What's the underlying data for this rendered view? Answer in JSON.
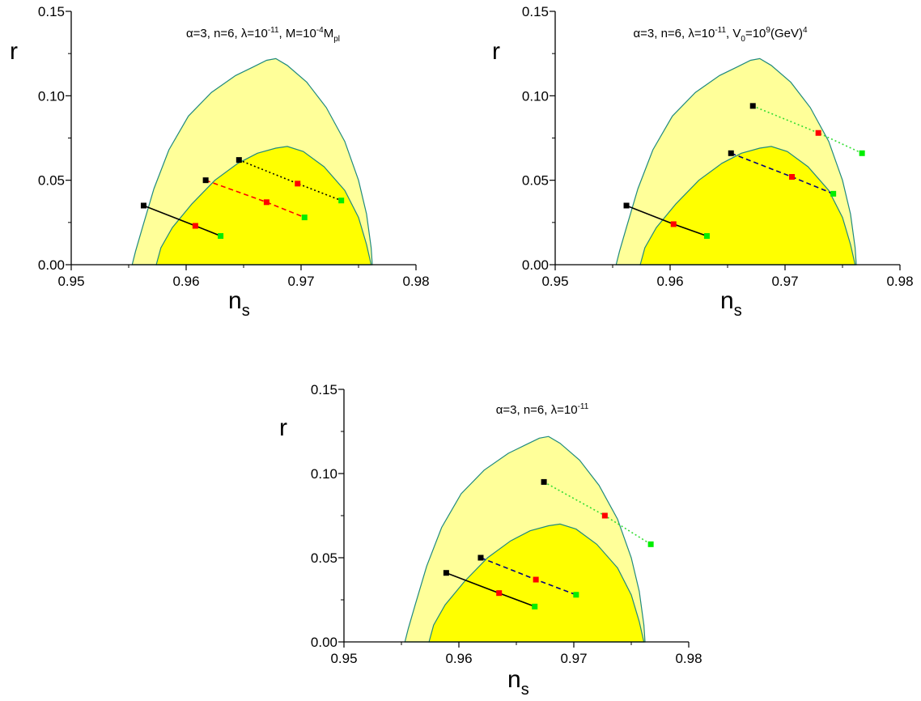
{
  "contour": {
    "outer_color": "#ffff99",
    "inner_color": "#ffff00",
    "edge_color": "#1f8a7e",
    "outer": [
      [
        0.9553,
        0.0
      ],
      [
        0.9556,
        0.008
      ],
      [
        0.9562,
        0.022
      ],
      [
        0.9572,
        0.045
      ],
      [
        0.9585,
        0.068
      ],
      [
        0.9602,
        0.088
      ],
      [
        0.9622,
        0.102
      ],
      [
        0.9643,
        0.112
      ],
      [
        0.9658,
        0.117
      ],
      [
        0.967,
        0.121
      ],
      [
        0.9678,
        0.122
      ],
      [
        0.9688,
        0.118
      ],
      [
        0.9705,
        0.108
      ],
      [
        0.9722,
        0.093
      ],
      [
        0.9738,
        0.073
      ],
      [
        0.975,
        0.05
      ],
      [
        0.9757,
        0.03
      ],
      [
        0.9761,
        0.01
      ],
      [
        0.9762,
        0.0
      ]
    ],
    "inner": [
      [
        0.9574,
        0.0
      ],
      [
        0.9578,
        0.01
      ],
      [
        0.9588,
        0.022
      ],
      [
        0.9605,
        0.036
      ],
      [
        0.9625,
        0.05
      ],
      [
        0.9645,
        0.06
      ],
      [
        0.9662,
        0.066
      ],
      [
        0.9678,
        0.069
      ],
      [
        0.9688,
        0.07
      ],
      [
        0.9702,
        0.067
      ],
      [
        0.972,
        0.058
      ],
      [
        0.9738,
        0.044
      ],
      [
        0.975,
        0.028
      ],
      [
        0.9757,
        0.012
      ],
      [
        0.9761,
        0.0
      ]
    ]
  },
  "chart_data": [
    {
      "type": "line",
      "title": "α=3, n=6, λ=10⁻¹¹, M=10⁻⁴M_pl",
      "xlabel": "n_s",
      "ylabel": "r",
      "xlim": [
        0.95,
        0.98
      ],
      "ylim": [
        0.0,
        0.15
      ],
      "x_ticks": [
        "0.95",
        "0.96",
        "0.97",
        "0.98"
      ],
      "y_ticks": [
        "0.00",
        "0.05",
        "0.10",
        "0.15"
      ],
      "grid": false,
      "series": [
        {
          "style": "solid",
          "color": "#000000",
          "x": [
            0.9563,
            0.9608,
            0.963
          ],
          "y": [
            0.035,
            0.023,
            0.017
          ]
        },
        {
          "style": "dashed",
          "color": "#ff0000",
          "x": [
            0.9617,
            0.967,
            0.9703
          ],
          "y": [
            0.05,
            0.037,
            0.028
          ]
        },
        {
          "style": "dotted",
          "color": "#000000",
          "x": [
            0.9646,
            0.9697,
            0.9735
          ],
          "y": [
            0.062,
            0.048,
            0.038
          ]
        }
      ]
    },
    {
      "type": "line",
      "title": "α=3, n=6, λ=10⁻¹¹, V₀=10⁹(GeV)⁴",
      "xlabel": "n_s",
      "ylabel": "r",
      "xlim": [
        0.95,
        0.98
      ],
      "ylim": [
        0.0,
        0.15
      ],
      "x_ticks": [
        "0.95",
        "0.96",
        "0.97",
        "0.98"
      ],
      "y_ticks": [
        "0.00",
        "0.05",
        "0.10",
        "0.15"
      ],
      "grid": false,
      "series": [
        {
          "style": "solid",
          "color": "#000000",
          "x": [
            0.9562,
            0.9603,
            0.9632
          ],
          "y": [
            0.035,
            0.024,
            0.017
          ]
        },
        {
          "style": "dashed",
          "color": "#000080",
          "x": [
            0.9653,
            0.9706,
            0.9742
          ],
          "y": [
            0.066,
            0.052,
            0.042
          ]
        },
        {
          "style": "dotted",
          "color": "#33dd33",
          "x": [
            0.9672,
            0.9729,
            0.9767
          ],
          "y": [
            0.094,
            0.078,
            0.066
          ]
        }
      ]
    },
    {
      "type": "line",
      "title": "α=3, n=6, λ=10⁻¹¹",
      "xlabel": "n_s",
      "ylabel": "r",
      "xlim": [
        0.95,
        0.98
      ],
      "ylim": [
        0.0,
        0.15
      ],
      "x_ticks": [
        "0.95",
        "0.96",
        "0.97",
        "0.98"
      ],
      "y_ticks": [
        "0.00",
        "0.05",
        "0.10",
        "0.15"
      ],
      "grid": false,
      "series": [
        {
          "style": "solid",
          "color": "#000000",
          "x": [
            0.9589,
            0.9635,
            0.9666
          ],
          "y": [
            0.041,
            0.029,
            0.021
          ]
        },
        {
          "style": "dashed",
          "color": "#000080",
          "x": [
            0.9619,
            0.9667,
            0.9702
          ],
          "y": [
            0.05,
            0.037,
            0.028
          ]
        },
        {
          "style": "dotted",
          "color": "#33dd33",
          "x": [
            0.9674,
            0.9727,
            0.9767
          ],
          "y": [
            0.095,
            0.075,
            0.058
          ]
        }
      ]
    }
  ],
  "point_colors": [
    "#000000",
    "#ff0000",
    "#00ee00"
  ]
}
